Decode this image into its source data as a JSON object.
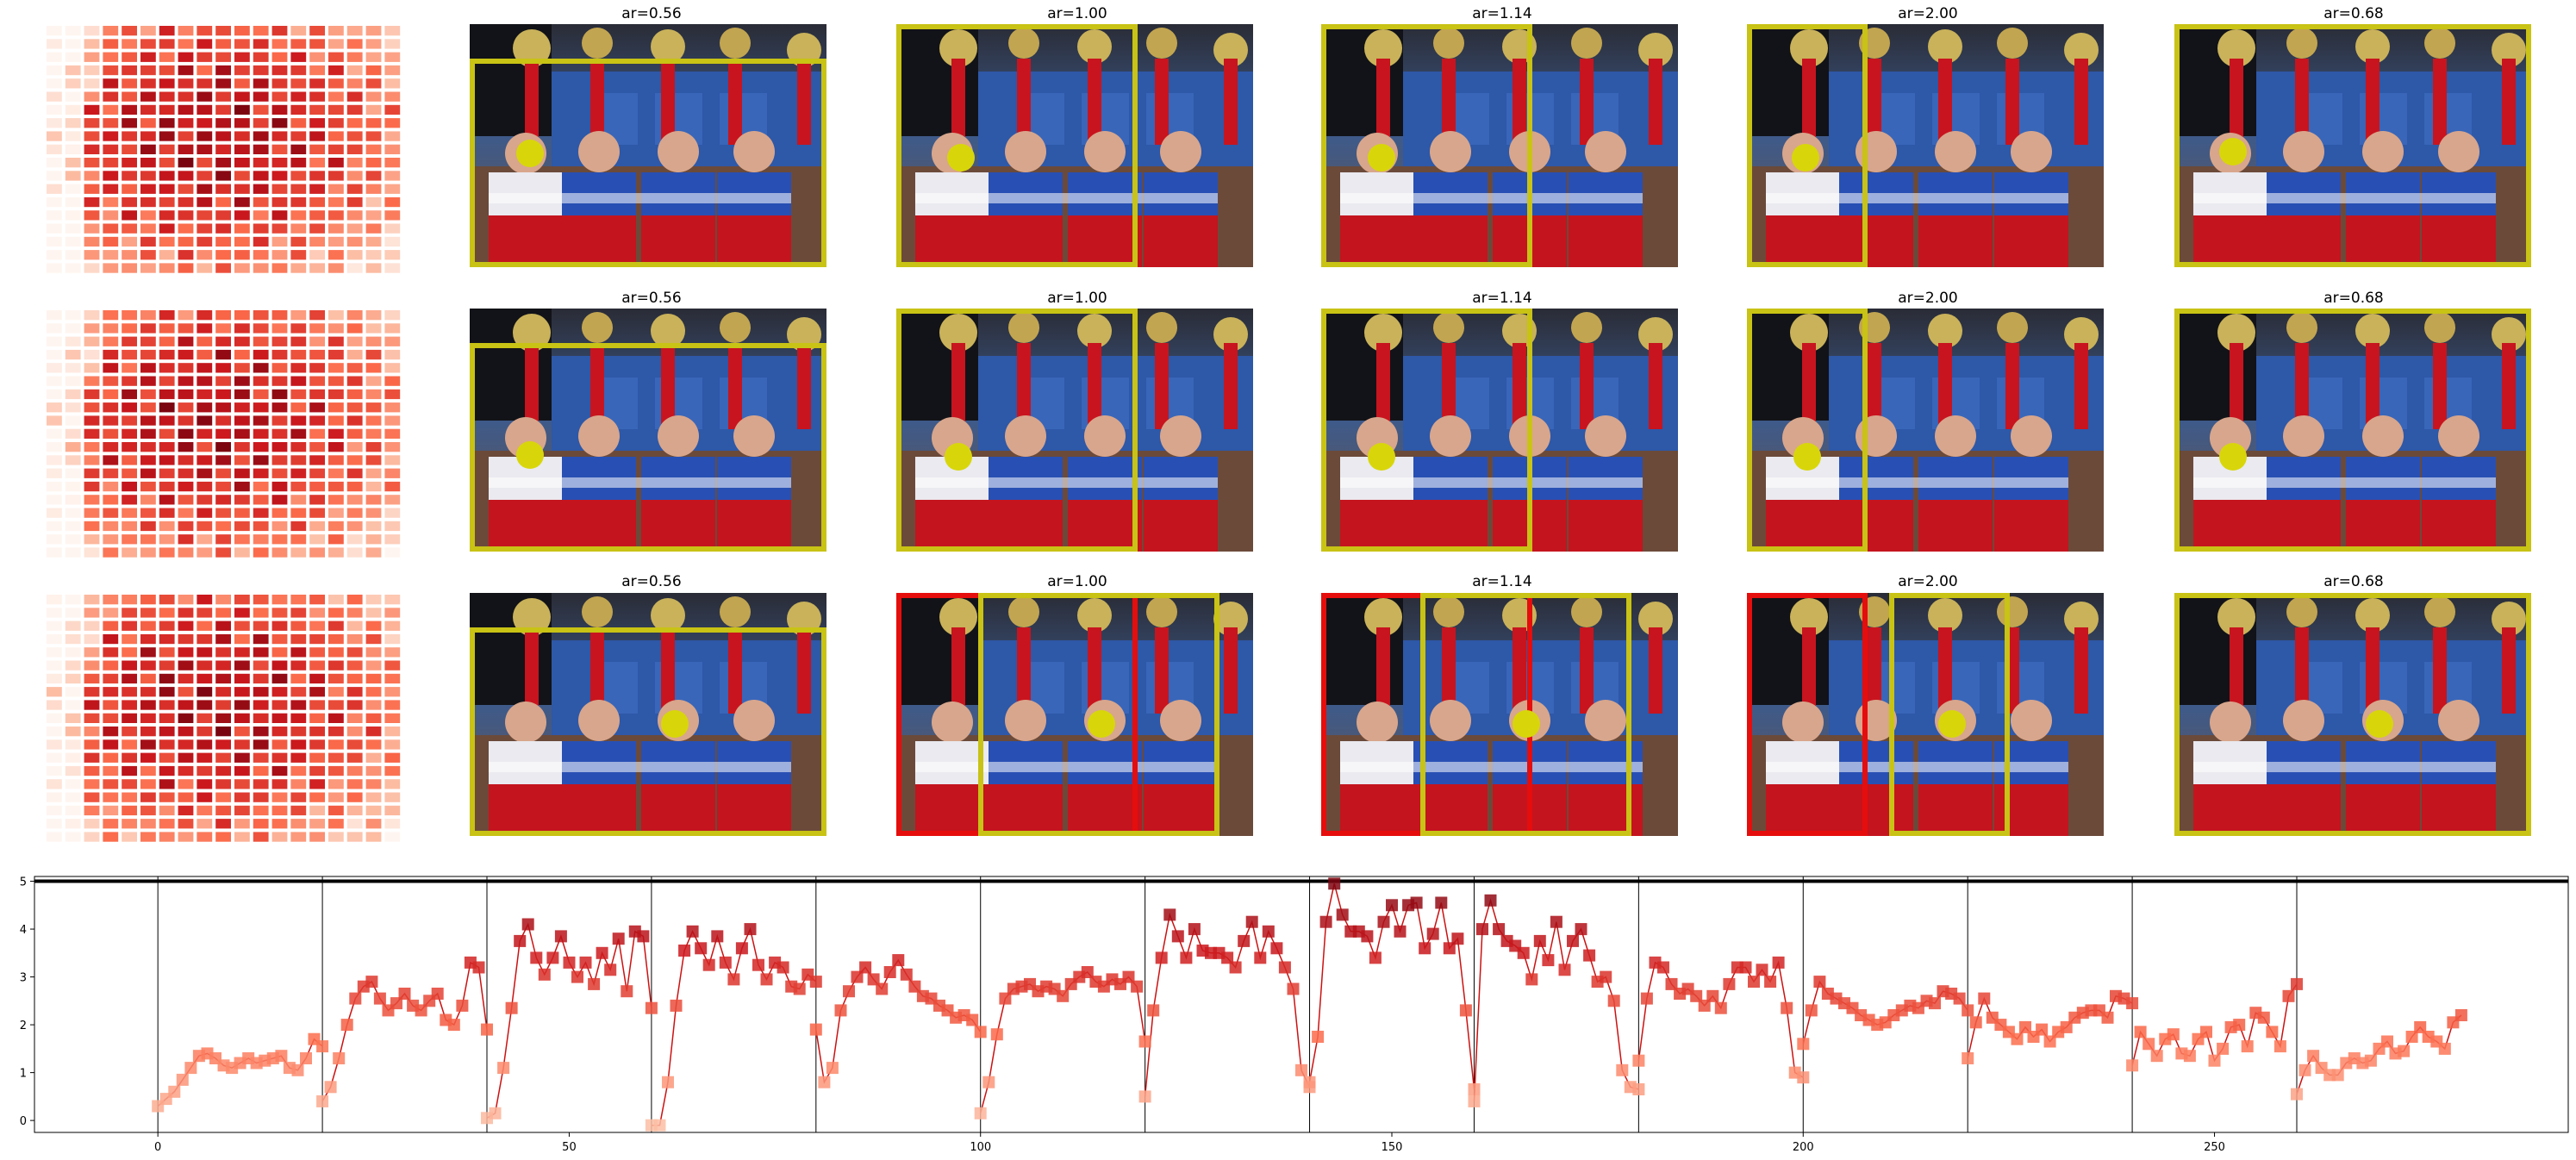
{
  "panel_titles": {
    "ar1": "ar=0.56",
    "ar2": "ar=1.00",
    "ar3": "ar=1.14",
    "ar4": "ar=2.00",
    "ar5": "ar=0.68"
  },
  "colors": {
    "box_yellow": "#c8c314",
    "box_red": "#e60d0d",
    "marker_dot": "#d8d60a",
    "line_red": "#cc1111",
    "separator": "#000000"
  },
  "chart_data": {
    "type": "line",
    "title": "",
    "xlabel": "",
    "ylabel": "",
    "x_ticks": [
      0,
      50,
      100,
      150,
      200,
      250
    ],
    "y_ticks": [
      0,
      1,
      2,
      3,
      4,
      5
    ],
    "xlim": [
      -15,
      293
    ],
    "ylim": [
      -0.25,
      5.1
    ],
    "separators_x": [
      0,
      20,
      40,
      60,
      80,
      100,
      120,
      140,
      160,
      180,
      200,
      220,
      240,
      260
    ],
    "threshold_y": 5.0,
    "marker": "square",
    "colormap": "Reds",
    "segments": [
      {
        "start": 0,
        "values": [
          0.3,
          0.45,
          0.6,
          0.85,
          1.1,
          1.35,
          1.4,
          1.3,
          1.15,
          1.1,
          1.2,
          1.3,
          1.2,
          1.25,
          1.3,
          1.35,
          1.1,
          1.05,
          1.3,
          1.7,
          1.55
        ]
      },
      {
        "start": 20,
        "values": [
          0.4,
          0.7,
          1.3,
          2.0,
          2.55,
          2.8,
          2.9,
          2.55,
          2.3,
          2.45,
          2.65,
          2.4,
          2.3,
          2.5,
          2.65,
          2.1,
          2.0,
          2.4,
          3.3,
          3.2,
          1.9
        ]
      },
      {
        "start": 40,
        "values": [
          0.05,
          0.15,
          1.1,
          2.35,
          3.75,
          4.1,
          3.4,
          3.05,
          3.4,
          3.85,
          3.3,
          3.0,
          3.3,
          2.85,
          3.5,
          3.15,
          3.8,
          2.7,
          3.95,
          3.85,
          2.35
        ]
      },
      {
        "start": 60,
        "values": [
          -0.1,
          -0.1,
          0.8,
          2.4,
          3.55,
          3.95,
          3.6,
          3.25,
          3.85,
          3.3,
          2.95,
          3.6,
          4.0,
          3.25,
          2.95,
          3.3,
          3.2,
          2.8,
          2.75,
          3.05,
          2.9
        ]
      },
      {
        "start": 80,
        "values": [
          1.9,
          0.8,
          1.1,
          2.3,
          2.7,
          3.0,
          3.2,
          2.95,
          2.75,
          3.1,
          3.35,
          3.05,
          2.8,
          2.6,
          2.55,
          2.4,
          2.3,
          2.15,
          2.2,
          2.1,
          1.85
        ]
      },
      {
        "start": 100,
        "values": [
          0.15,
          0.8,
          1.8,
          2.55,
          2.75,
          2.8,
          2.85,
          2.7,
          2.8,
          2.75,
          2.6,
          2.85,
          3.0,
          3.1,
          2.9,
          2.8,
          2.95,
          2.85,
          3.0,
          2.8,
          1.65
        ]
      },
      {
        "start": 120,
        "values": [
          0.5,
          2.3,
          3.4,
          4.3,
          3.85,
          3.4,
          4.0,
          3.55,
          3.5,
          3.5,
          3.4,
          3.2,
          3.75,
          4.15,
          3.4,
          3.95,
          3.6,
          3.2,
          2.75,
          1.05,
          0.7
        ]
      },
      {
        "start": 140,
        "values": [
          0.8,
          1.75,
          4.15,
          4.95,
          4.3,
          3.95,
          3.95,
          3.85,
          3.4,
          4.15,
          4.5,
          3.95,
          4.5,
          4.55,
          3.6,
          3.9,
          4.55,
          3.6,
          3.8,
          2.3,
          0.65
        ]
      },
      {
        "start": 160,
        "values": [
          0.4,
          4.0,
          4.6,
          4.0,
          3.75,
          3.65,
          3.5,
          2.95,
          3.75,
          3.35,
          4.15,
          3.15,
          3.75,
          4.0,
          3.45,
          2.9,
          3.0,
          2.5,
          1.05,
          0.7,
          0.65
        ]
      },
      {
        "start": 180,
        "values": [
          1.25,
          2.55,
          3.3,
          3.2,
          2.85,
          2.65,
          2.75,
          2.6,
          2.4,
          2.6,
          2.35,
          2.85,
          3.2,
          3.2,
          2.9,
          3.15,
          2.9,
          3.3,
          2.35,
          1.0,
          0.9
        ]
      },
      {
        "start": 200,
        "values": [
          1.6,
          2.3,
          2.9,
          2.65,
          2.55,
          2.45,
          2.35,
          2.2,
          2.1,
          2.0,
          2.05,
          2.2,
          2.3,
          2.4,
          2.35,
          2.5,
          2.45,
          2.7,
          2.65,
          2.55,
          2.3
        ]
      },
      {
        "start": 220,
        "values": [
          1.3,
          2.05,
          2.55,
          2.15,
          2.0,
          1.85,
          1.7,
          1.95,
          1.75,
          1.9,
          1.65,
          1.85,
          1.95,
          2.15,
          2.25,
          2.3,
          2.3,
          2.15,
          2.6,
          2.55,
          2.45
        ]
      },
      {
        "start": 240,
        "values": [
          1.15,
          1.85,
          1.6,
          1.35,
          1.7,
          1.8,
          1.4,
          1.35,
          1.7,
          1.85,
          1.25,
          1.5,
          1.95,
          2.0,
          1.55,
          2.25,
          2.15,
          1.85,
          1.55,
          2.6,
          2.85
        ]
      },
      {
        "start": 260,
        "values": [
          0.55,
          1.05,
          1.35,
          1.1,
          0.95,
          0.95,
          1.2,
          1.3,
          1.2,
          1.25,
          1.5,
          1.65,
          1.4,
          1.45,
          1.75,
          1.95,
          1.75,
          1.65,
          1.5,
          2.05,
          2.2
        ]
      }
    ]
  }
}
